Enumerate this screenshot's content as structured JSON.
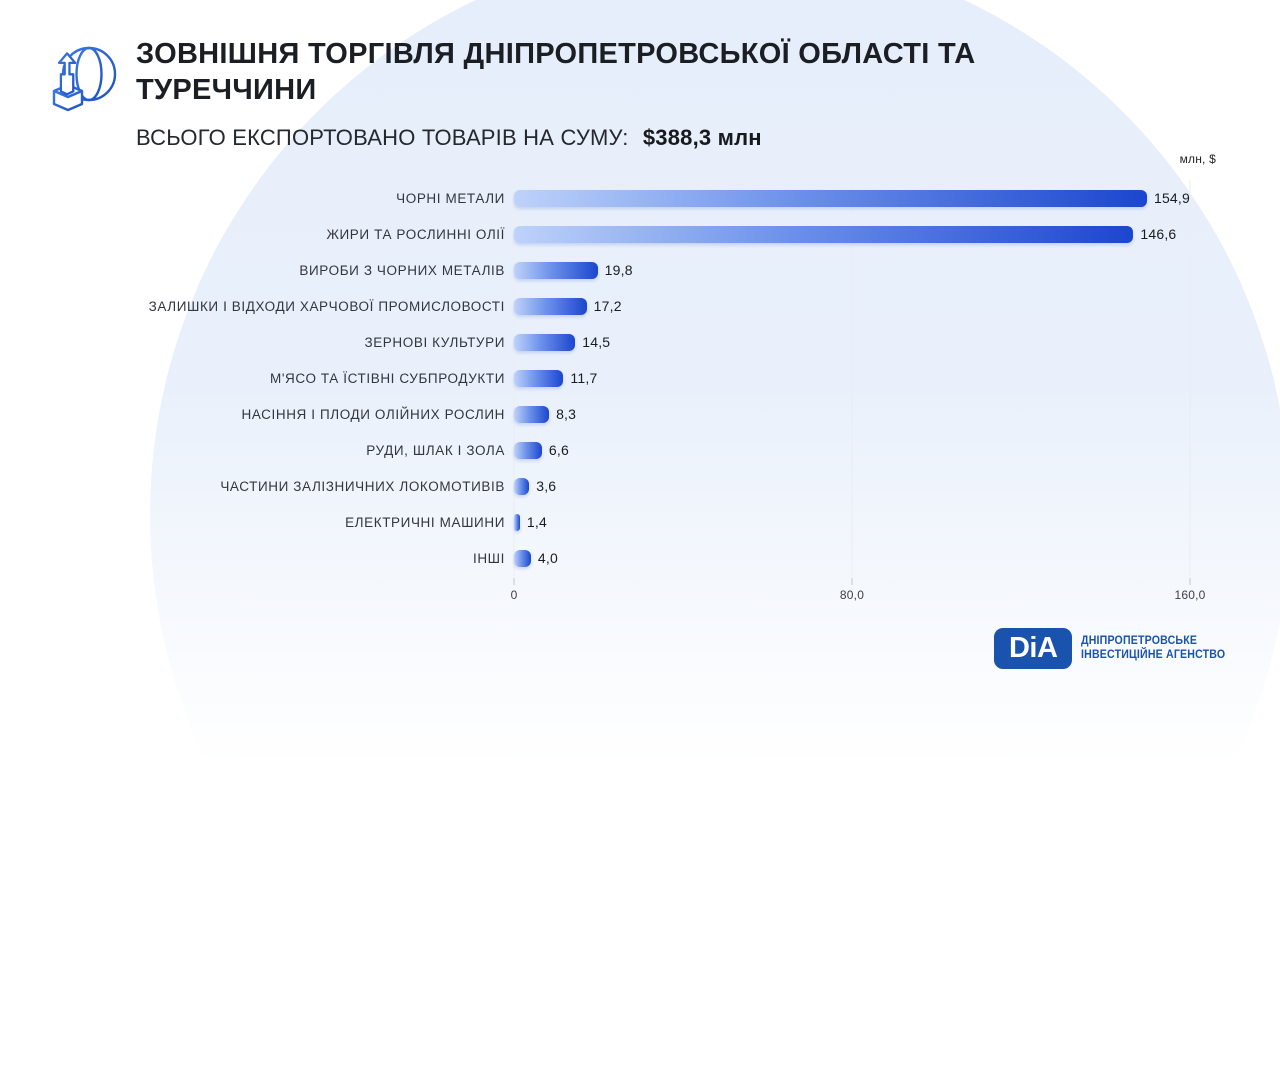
{
  "header": {
    "title": "ЗОВНІШНЯ ТОРГІВЛЯ ДНІПРОПЕТРОВСЬКОЇ ОБЛАСТІ ТА ТУРЕЧЧИНИ",
    "subtitle_label": "ВСЬОГО ЕКСПОРТОВАНО ТОВАРІВ НА СУМУ:",
    "subtitle_value": "$388,3 млн",
    "logo_icon": "globe-export-icon"
  },
  "chart_data": {
    "type": "bar",
    "orientation": "horizontal",
    "title": "ЗОВНІШНЯ ТОРГІВЛЯ ДНІПРОПЕТРОВСЬКОЇ ОБЛАСТІ ТА ТУРЕЧЧИНИ",
    "unit_label": "млн, $",
    "categories": [
      "ЧОРНІ МЕТАЛИ",
      "ЖИРИ ТА РОСЛИННІ ОЛІЇ",
      "ВИРОБИ З ЧОРНИХ МЕТАЛІВ",
      "ЗАЛИШКИ І ВІДХОДИ ХАРЧОВОЇ ПРОМИСЛОВОСТІ",
      "ЗЕРНОВІ КУЛЬТУРИ",
      "М'ЯСО ТА ЇСТІВНІ СУБПРОДУКТИ",
      "НАСІННЯ І ПЛОДИ ОЛІЙНИХ РОСЛИН",
      "РУДИ, ШЛАК І ЗОЛА",
      "ЧАСТИНИ ЗАЛІЗНИЧНИХ ЛОКОМОТИВІВ",
      "ЕЛЕКТРИЧНІ МАШИНИ",
      "ІНШІ"
    ],
    "values": [
      154.9,
      146.6,
      19.8,
      17.2,
      14.5,
      11.7,
      8.3,
      6.6,
      3.6,
      1.4,
      4.0
    ],
    "value_labels": [
      "154,9",
      "146,6",
      "19,8",
      "17,2",
      "14,5",
      "11,7",
      "8,3",
      "6,6",
      "3,6",
      "1,4",
      "4,0"
    ],
    "xlim": [
      0,
      160
    ],
    "x_ticks": [
      0,
      80,
      160
    ],
    "x_tick_labels": [
      "0",
      "80,0",
      "160,0"
    ],
    "grid": true,
    "legend": "none",
    "bar_gradient": [
      "#bed2fa",
      "#1b46cf"
    ]
  },
  "footer": {
    "logo_text": "DiA",
    "org_line1": "ДНІПРОПЕТРОВСЬКЕ",
    "org_line2": "ІНВЕСТИЦІЙНЕ АГЕНСТВО",
    "brand_color": "#1a53ae"
  },
  "colors": {
    "background_circle": "#e8eefb",
    "title_text": "#1b1e23",
    "bar_light": "#bed2fa",
    "bar_dark": "#1b46cf",
    "gridline": "#ebecef"
  }
}
